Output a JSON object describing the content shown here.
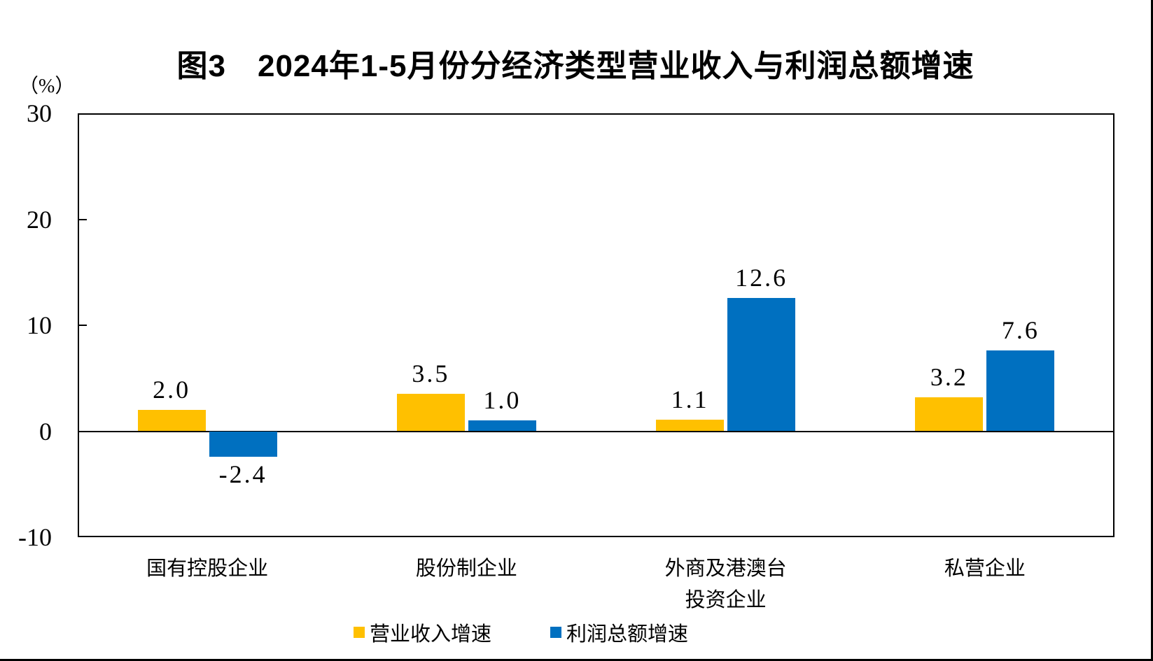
{
  "chart_data": {
    "type": "bar",
    "title": "图3　2024年1-5月份分经济类型营业收入与利润总额增速",
    "ylabel": "（%）",
    "categories": [
      "国有控股企业",
      "股份制企业",
      "外商及港澳台\n投资企业",
      "私营企业"
    ],
    "series": [
      {
        "name": "营业收入增速",
        "color": "#FFC000",
        "values": [
          2.0,
          3.5,
          1.1,
          3.2
        ]
      },
      {
        "name": "利润总额增速",
        "color": "#0070C0",
        "values": [
          -2.4,
          1.0,
          12.6,
          7.6
        ]
      }
    ],
    "ylim": [
      -10,
      30
    ],
    "yticks": [
      30,
      20,
      10,
      0,
      -10
    ],
    "value_label_decimals": 1,
    "legend_position": "bottom",
    "grid": false,
    "axis_color": "#000000",
    "background_color": "#ffffff"
  }
}
